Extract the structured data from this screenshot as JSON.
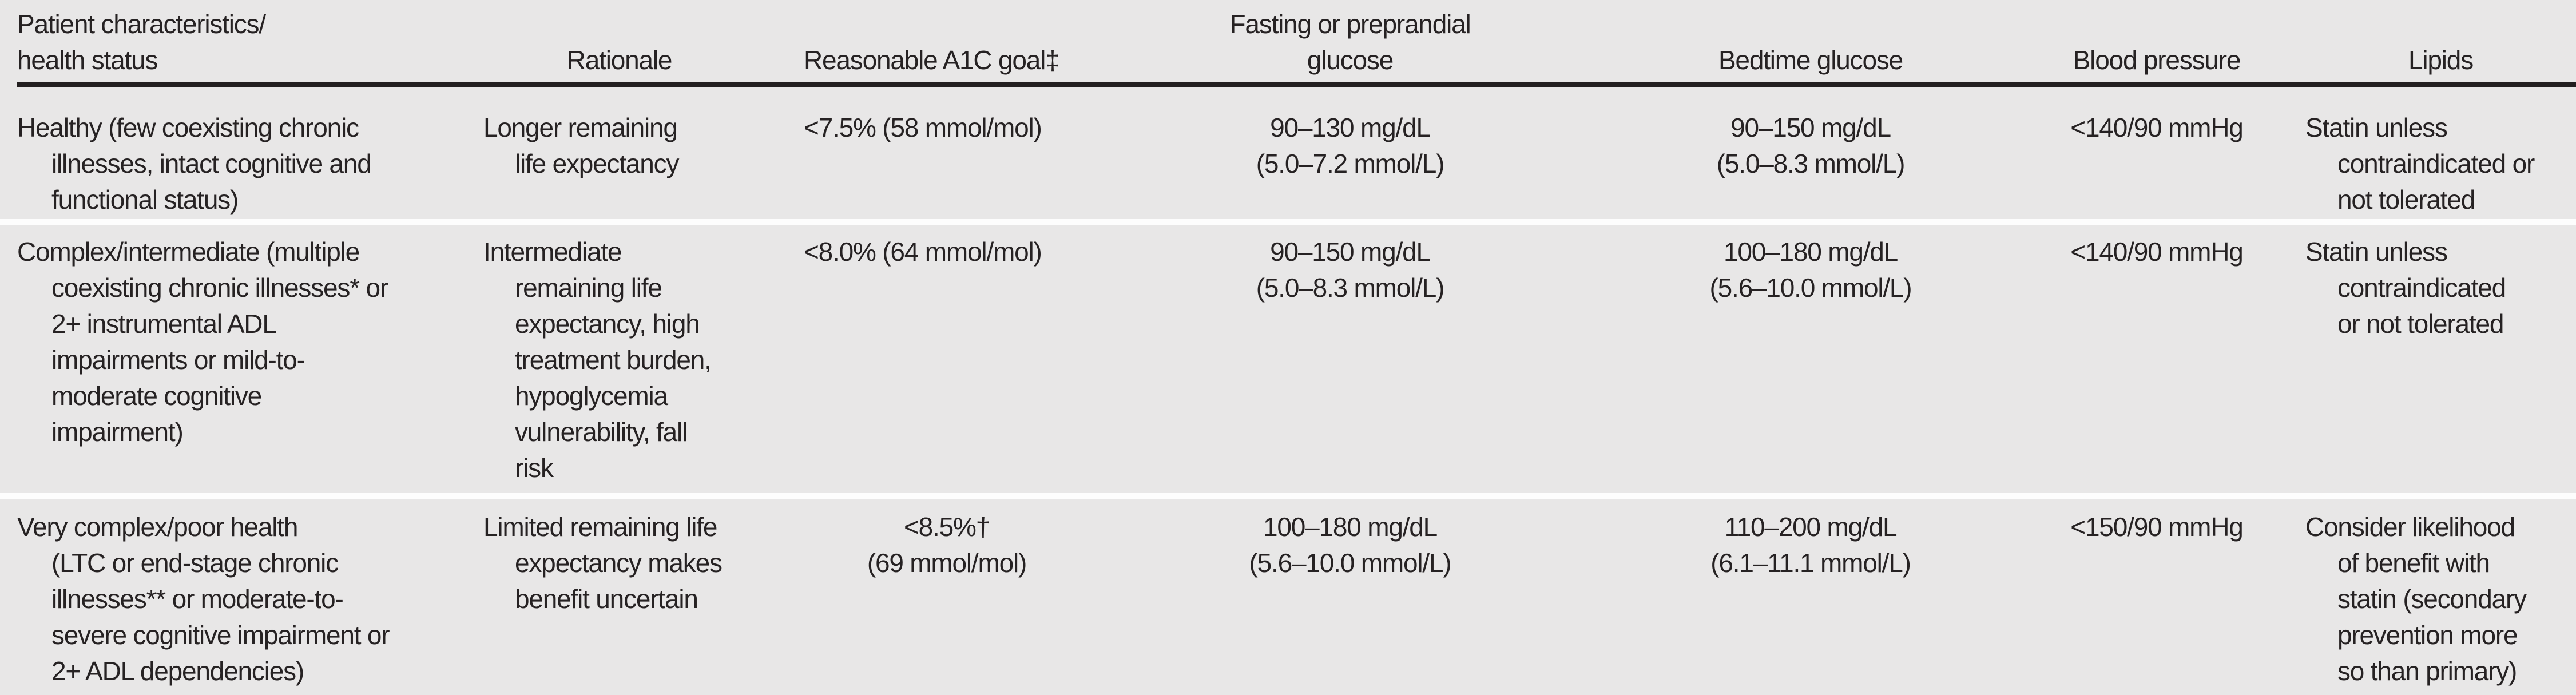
{
  "colors": {
    "background": "#e8e7e7",
    "text": "#262223",
    "header_rule": "#231f20",
    "row_separator": "#fdfdfd"
  },
  "table": {
    "header": [
      {
        "id": "characteristics",
        "lines": [
          "Patient characteristics/",
          "health status"
        ]
      },
      {
        "id": "rationale",
        "lines": [
          "Rationale"
        ]
      },
      {
        "id": "a1c_goal",
        "lines": [
          "Reasonable A1C goal‡"
        ]
      },
      {
        "id": "fasting_glucose",
        "lines": [
          "Fasting or preprandial",
          "glucose"
        ]
      },
      {
        "id": "bedtime_glucose",
        "lines": [
          "Bedtime glucose"
        ]
      },
      {
        "id": "blood_pressure",
        "lines": [
          "Blood pressure"
        ]
      },
      {
        "id": "lipids",
        "lines": [
          "Lipids"
        ]
      }
    ],
    "rows": [
      {
        "id": "healthy",
        "cells": {
          "characteristics": [
            "Healthy (few coexisting chronic",
            "illnesses, intact cognitive and",
            "functional status)"
          ],
          "rationale": [
            "Longer remaining",
            "life expectancy"
          ],
          "a1c_goal": [
            "<7.5% (58 mmol/mol)"
          ],
          "fasting_glucose": [
            "90–130 mg/dL",
            "(5.0–7.2 mmol/L)"
          ],
          "bedtime_glucose": [
            "90–150 mg/dL",
            "(5.0–8.3 mmol/L)"
          ],
          "blood_pressure": [
            "<140/90 mmHg"
          ],
          "lipids": [
            "Statin unless",
            "contraindicated or",
            "not tolerated"
          ]
        }
      },
      {
        "id": "complex_intermediate",
        "cells": {
          "characteristics": [
            "Complex/intermediate (multiple",
            "coexisting chronic illnesses* or",
            "2+ instrumental ADL",
            "impairments or mild-to-",
            "moderate cognitive",
            "impairment)"
          ],
          "rationale": [
            "Intermediate",
            "remaining life",
            "expectancy, high",
            "treatment burden,",
            "hypoglycemia",
            "vulnerability, fall",
            "risk"
          ],
          "a1c_goal": [
            "<8.0% (64 mmol/mol)"
          ],
          "fasting_glucose": [
            "90–150 mg/dL",
            "(5.0–8.3 mmol/L)"
          ],
          "bedtime_glucose": [
            "100–180 mg/dL",
            "(5.6–10.0 mmol/L)"
          ],
          "blood_pressure": [
            "<140/90 mmHg"
          ],
          "lipids": [
            "Statin unless",
            "contraindicated",
            "or not tolerated"
          ]
        }
      },
      {
        "id": "very_complex_poor_health",
        "cells": {
          "characteristics": [
            "Very complex/poor health",
            "(LTC or end-stage chronic",
            "illnesses** or moderate-to-",
            "severe cognitive impairment or",
            "2+ ADL dependencies)"
          ],
          "rationale": [
            "Limited remaining life",
            "expectancy makes",
            "benefit uncertain"
          ],
          "a1c_goal": [
            "<8.5%†",
            "(69 mmol/mol)"
          ],
          "fasting_glucose": [
            "100–180 mg/dL",
            "(5.6–10.0 mmol/L)"
          ],
          "bedtime_glucose": [
            "110–200 mg/dL",
            "(6.1–11.1 mmol/L)"
          ],
          "blood_pressure": [
            "<150/90 mmHg"
          ],
          "lipids": [
            "Consider likelihood",
            "of benefit with",
            "statin (secondary",
            "prevention more",
            "so than primary)"
          ]
        }
      }
    ]
  }
}
